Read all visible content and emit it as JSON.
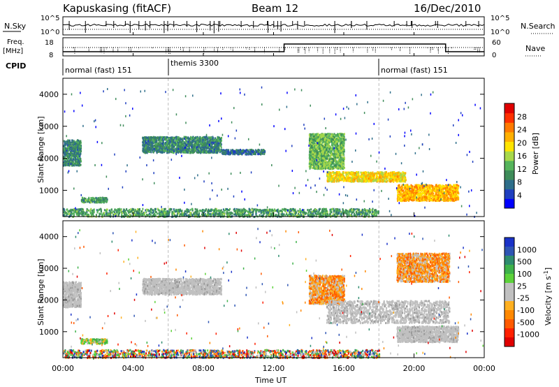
{
  "header": {
    "station": "Kapuskasing (fitACF)",
    "beam": "Beam 12",
    "date": "16/Dec/2010"
  },
  "panels": {
    "nsky_label": "N.Sky",
    "nsearch_label": "N.Search",
    "nsky_ticks": [
      "10^5",
      "10^0"
    ],
    "nsearch_ticks": [
      "10^5",
      "10^0"
    ],
    "freq_label_line1": "Freq.",
    "freq_label_line2": "[MHz]",
    "freq_ticks": [
      "18",
      "8"
    ],
    "nave_label": "Nave",
    "nave_ticks": [
      "60",
      "0"
    ],
    "cpid_label": "CPID",
    "cpid_segments": [
      {
        "label": "normal (fast) 151",
        "start_hour": 0
      },
      {
        "label": "themis 3300",
        "start_hour": 6
      },
      {
        "label": "normal (fast) 151",
        "start_hour": 18
      }
    ]
  },
  "chart_data": [
    {
      "type": "heatmap",
      "name": "Power",
      "ylabel": "Slant Range [km]",
      "ylim": [
        180,
        4500
      ],
      "yticks": [
        1000,
        2000,
        3000,
        4000
      ],
      "xlim": [
        0,
        24
      ],
      "colorbar": {
        "label": "Power [dB]",
        "range": [
          0,
          32
        ],
        "ticks": [
          4,
          8,
          12,
          16,
          20,
          24,
          28
        ],
        "colors": [
          "#0000ff",
          "#1f3fbf",
          "#2e6e8a",
          "#3e8c5a",
          "#56b45c",
          "#a8d84a",
          "#ffe400",
          "#ffb000",
          "#ff7a00",
          "#ff3000",
          "#e00000"
        ]
      },
      "scatter_regions": [
        {
          "t0": 0.0,
          "t1": 1.0,
          "r0": 1800,
          "r1": 2600,
          "level": 8
        },
        {
          "t0": 1.0,
          "t1": 2.5,
          "r0": 650,
          "r1": 800,
          "level": 10
        },
        {
          "t0": 4.5,
          "t1": 9.0,
          "r0": 2200,
          "r1": 2700,
          "level": 8
        },
        {
          "t0": 9.0,
          "t1": 11.5,
          "r0": 2150,
          "r1": 2300,
          "level": 6
        },
        {
          "t0": 14.0,
          "t1": 16.0,
          "r0": 1700,
          "r1": 2800,
          "level": 12
        },
        {
          "t0": 15.0,
          "t1": 19.5,
          "r0": 1300,
          "r1": 1600,
          "level": 18
        },
        {
          "t0": 19.0,
          "t1": 22.5,
          "r0": 700,
          "r1": 1200,
          "level": 20
        },
        {
          "t0": 0.0,
          "t1": 18.0,
          "r0": 200,
          "r1": 450,
          "level": 10
        }
      ]
    },
    {
      "type": "heatmap",
      "name": "Velocity",
      "ylabel": "Slant Range [km]",
      "xlabel": "Time UT",
      "ylim": [
        180,
        4500
      ],
      "yticks": [
        1000,
        2000,
        3000,
        4000
      ],
      "xlim": [
        0,
        24
      ],
      "xticks": [
        "00:00",
        "04:00",
        "08:00",
        "12:00",
        "16:00",
        "20:00",
        "00:00"
      ],
      "colorbar": {
        "label": "Velocity [m s",
        "label_superscript": "-1",
        "label_suffix": "]",
        "ticks": [
          "1000",
          "500",
          "100",
          "25",
          "-25",
          "-100",
          "-500",
          "-1000"
        ],
        "colors": [
          "#1a32c8",
          "#2e55b4",
          "#2e8c6e",
          "#3eb24a",
          "#5cd23a",
          "#c0c0c0",
          "#c0c0c0",
          "#ffb020",
          "#ff8800",
          "#ff5a00",
          "#ff2000",
          "#e00000"
        ]
      },
      "scatter_regions": [
        {
          "t0": 0.0,
          "t1": 1.0,
          "r0": 1800,
          "r1": 2600,
          "vel": "ground"
        },
        {
          "t0": 1.0,
          "t1": 2.5,
          "r0": 650,
          "r1": 800,
          "vel": "slow"
        },
        {
          "t0": 4.5,
          "t1": 9.0,
          "r0": 2200,
          "r1": 2700,
          "vel": "ground"
        },
        {
          "t0": 14.0,
          "t1": 16.0,
          "r0": 1900,
          "r1": 2800,
          "vel": "away"
        },
        {
          "t0": 15.0,
          "t1": 22.0,
          "r0": 1300,
          "r1": 2000,
          "vel": "ground"
        },
        {
          "t0": 19.0,
          "t1": 22.5,
          "r0": 700,
          "r1": 1200,
          "vel": "ground"
        },
        {
          "t0": 19.0,
          "t1": 22.0,
          "r0": 2600,
          "r1": 3500,
          "vel": "away"
        },
        {
          "t0": 0.0,
          "t1": 18.0,
          "r0": 200,
          "r1": 450,
          "vel": "mixed"
        }
      ]
    }
  ]
}
